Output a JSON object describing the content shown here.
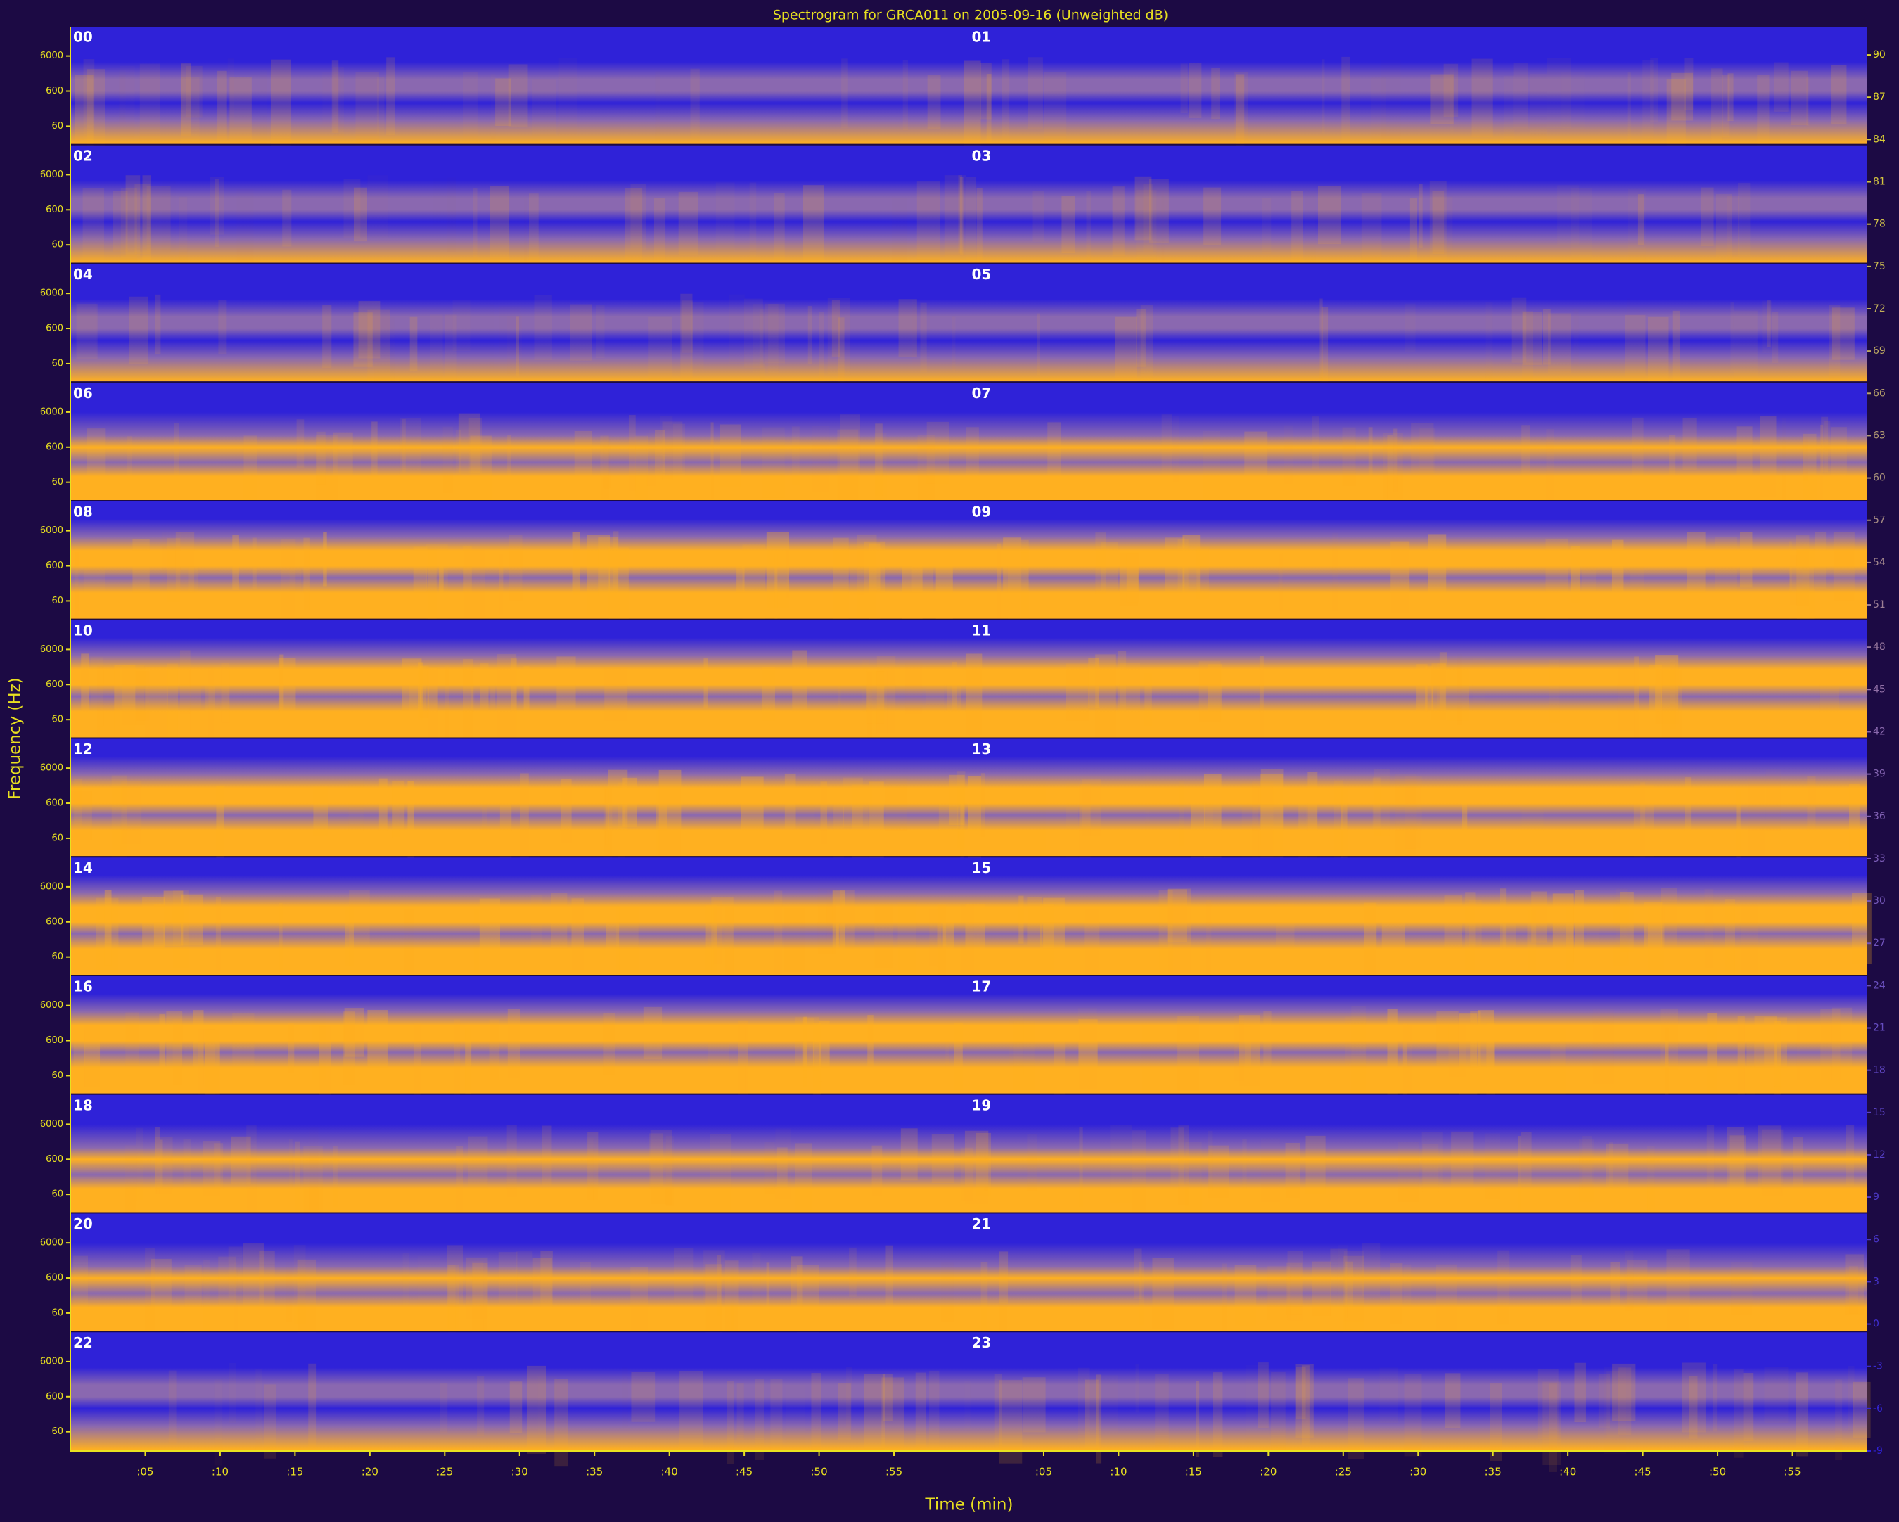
{
  "chart_data": {
    "type": "spectrogram",
    "title": "Spectrogram for GRCA011 on 2005-09-16 (Unweighted dB)",
    "xlabel": "Time (min)",
    "ylabel": "Frequency (Hz)",
    "panels": [
      "00",
      "01",
      "02",
      "03",
      "04",
      "05",
      "06",
      "07",
      "08",
      "09",
      "10",
      "11",
      "12",
      "13",
      "14",
      "15",
      "16",
      "17",
      "18",
      "19",
      "20",
      "21",
      "22",
      "23"
    ],
    "xlim": [
      0,
      60
    ],
    "xticks": [
      {
        "value": 5,
        "label": ":05"
      },
      {
        "value": 10,
        "label": ":10"
      },
      {
        "value": 15,
        "label": ":15"
      },
      {
        "value": 20,
        "label": ":20"
      },
      {
        "value": 25,
        "label": ":25"
      },
      {
        "value": 30,
        "label": ":30"
      },
      {
        "value": 35,
        "label": ":35"
      },
      {
        "value": 40,
        "label": ":40"
      },
      {
        "value": 45,
        "label": ":45"
      },
      {
        "value": 50,
        "label": ":50"
      },
      {
        "value": 55,
        "label": ":55"
      }
    ],
    "ylim": [
      17,
      41000
    ],
    "log_y": true,
    "yticks": [
      60,
      600,
      6000
    ],
    "clim": [
      -9,
      92
    ],
    "cticks": [
      90,
      87,
      84,
      81,
      78,
      75,
      72,
      69,
      66,
      63,
      60,
      57,
      54,
      51,
      48,
      45,
      42,
      39,
      36,
      33,
      30,
      27,
      24,
      21,
      18,
      15,
      12,
      9,
      6,
      3,
      0,
      -3,
      -6,
      -9
    ],
    "colormap": [
      "#2f22d8",
      "#8a68b0",
      "#ffb020"
    ]
  }
}
